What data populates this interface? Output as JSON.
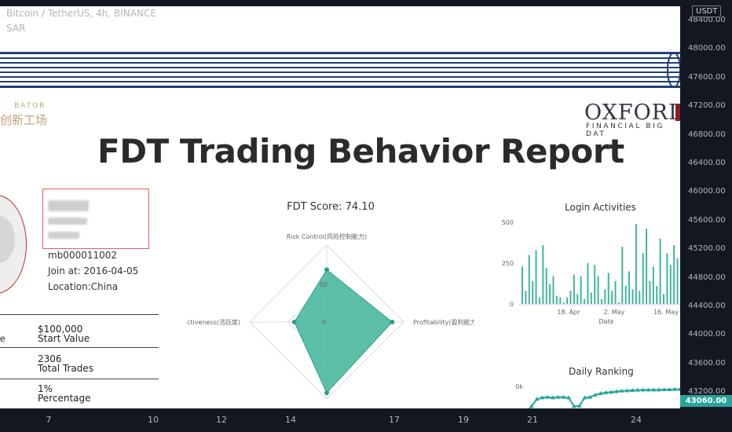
{
  "chart_header": {
    "symbol": "Bitcoin / TetherUS, 4h, BINANCE",
    "indicator": "SAR"
  },
  "report": {
    "incubator_small": "BATOR",
    "incubator_cn": "创新工场",
    "oxford_logo": "OXFORD",
    "oxford_sub": "FINANCIAL BIG DAT",
    "title": "FDT Trading Behavior Report",
    "profile": {
      "id": "mb000011002",
      "join": "Join at: 2016-04-05",
      "location": "Location:China"
    },
    "stats": [
      {
        "value": "$100,000",
        "label": "Start Value",
        "cut": "e"
      },
      {
        "value": "2306",
        "label": "Total Trades",
        "cut": ""
      },
      {
        "value": "1%",
        "label": "Percentage",
        "cut": ""
      }
    ],
    "radar": {
      "title": "FDT Score: 74.10",
      "axes": [
        "Risk Control(风险控制能力)",
        "Profitability(盈利能力)",
        "",
        "Activeness(活跃度)"
      ],
      "ticks": [
        "50",
        "0"
      ],
      "color": "#3fb59a"
    },
    "login": {
      "title": "Login Activities",
      "yticks": [
        "500",
        "250",
        "0"
      ],
      "xticks": [
        "18. Apr",
        "2. May",
        "16. May"
      ],
      "xlabel": "Date",
      "color": "#3fb59a"
    },
    "ranking": {
      "title": "Daily Ranking",
      "ytick": "0k",
      "color": "#26a69a"
    }
  },
  "price_axis": {
    "currency": "USDT",
    "labels": [
      "48400.00",
      "48000.00",
      "47600.00",
      "47200.00",
      "46800.00",
      "46400.00",
      "46000.00",
      "45600.00",
      "45200.00",
      "44800.00",
      "44400.00",
      "44000.00",
      "43600.00",
      "43200.00"
    ],
    "current": "43060.00"
  },
  "time_axis": {
    "labels": [
      "7",
      "10",
      "12",
      "14",
      "17",
      "19",
      "21",
      "24"
    ]
  },
  "chart_data": [
    {
      "type": "radar",
      "title": "FDT Score: 74.10",
      "axes": [
        "Risk Control(风险控制能力)",
        "Profitability(盈利能力)",
        "",
        "Activeness(活跃度)"
      ],
      "values": [
        68,
        85,
        92,
        42
      ],
      "rmax": 100
    },
    {
      "type": "bar",
      "title": "Login Activities",
      "xlabel": "Date",
      "ylim": [
        0,
        500
      ],
      "values": [
        230,
        80,
        300,
        140,
        330,
        40,
        360,
        220,
        120,
        170,
        50,
        40,
        10,
        40,
        80,
        180,
        60,
        170,
        30,
        250,
        70,
        240,
        170,
        30,
        90,
        190,
        80,
        140,
        10,
        350,
        110,
        200,
        90,
        490,
        80,
        310,
        460,
        140,
        230,
        110,
        400,
        60,
        310,
        240,
        360,
        280
      ]
    },
    {
      "type": "line",
      "title": "Daily Ranking",
      "values": [
        0.1,
        0.3,
        0.55,
        0.6,
        0.62,
        0.6,
        0.62,
        0.62,
        0.6,
        0.3,
        0.31,
        0.6,
        0.62,
        0.7,
        0.75,
        0.78,
        0.8,
        0.82,
        0.84,
        0.85,
        0.86,
        0.87,
        0.88,
        0.88,
        0.88,
        0.88,
        0.89,
        0.89,
        0.9,
        0.9
      ]
    }
  ]
}
